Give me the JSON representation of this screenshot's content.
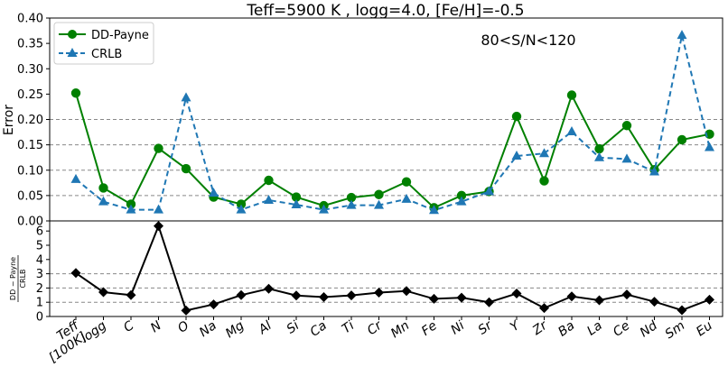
{
  "chart_data": [
    {
      "type": "line",
      "title": "Teff=5900 K , logg=4.0, [Fe/H]=-0.5",
      "annotation": "80<S/N<120",
      "ylabel": "Error",
      "xlabel": "",
      "ylim": [
        0.0,
        0.4
      ],
      "yticks": [
        "0.00",
        "0.05",
        "0.10",
        "0.15",
        "0.20",
        "0.25",
        "0.30",
        "0.35",
        "0.40"
      ],
      "grid": "dashed horizontal lines at 0.05, 0.10, 0.15, 0.20",
      "legend_position": "upper-left",
      "categories": [
        "Teff [100K]",
        "logg",
        "C",
        "N",
        "O",
        "Na",
        "Mg",
        "Al",
        "Si",
        "Ca",
        "Ti",
        "Cr",
        "Mn",
        "Fe",
        "Ni",
        "Sr",
        "Y",
        "Zr",
        "Ba",
        "La",
        "Ce",
        "Nd",
        "Sm",
        "Eu"
      ],
      "series": [
        {
          "name": "DD-Payne",
          "color": "#008000",
          "marker": "circle",
          "linestyle": "solid",
          "values": [
            0.252,
            0.065,
            0.033,
            0.143,
            0.103,
            0.047,
            0.033,
            0.08,
            0.047,
            0.03,
            0.046,
            0.052,
            0.077,
            0.026,
            0.05,
            0.058,
            0.206,
            0.079,
            0.248,
            0.142,
            0.188,
            0.101,
            0.16,
            0.171
          ]
        },
        {
          "name": "CRLB",
          "color": "#1f77b4",
          "marker": "triangle",
          "linestyle": "dashed",
          "values": [
            0.082,
            0.038,
            0.022,
            0.022,
            0.243,
            0.055,
            0.022,
            0.041,
            0.032,
            0.022,
            0.031,
            0.031,
            0.043,
            0.021,
            0.038,
            0.058,
            0.128,
            0.133,
            0.176,
            0.125,
            0.122,
            0.097,
            0.366,
            0.145
          ]
        }
      ]
    },
    {
      "type": "line",
      "ylabel_num": "DD − Payne",
      "ylabel_den": "CRLB",
      "ylim": [
        0,
        6.5
      ],
      "yticks": [
        "0",
        "1",
        "2",
        "3",
        "4",
        "5",
        "6"
      ],
      "grid": "dashed horizontal lines at 1, 2, 3",
      "categories": [
        "Teff [100K]",
        "logg",
        "C",
        "N",
        "O",
        "Na",
        "Mg",
        "Al",
        "Si",
        "Ca",
        "Ti",
        "Cr",
        "Mn",
        "Fe",
        "Ni",
        "Sr",
        "Y",
        "Zr",
        "Ba",
        "La",
        "Ce",
        "Nd",
        "Sm",
        "Eu"
      ],
      "tick_labels": [
        [
          "Teff",
          "[100K]"
        ],
        [
          "logg"
        ],
        [
          "C"
        ],
        [
          "N"
        ],
        [
          "O"
        ],
        [
          "Na"
        ],
        [
          "Mg"
        ],
        [
          "Al"
        ],
        [
          "Si"
        ],
        [
          "Ca"
        ],
        [
          "Ti"
        ],
        [
          "Cr"
        ],
        [
          "Mn"
        ],
        [
          "Fe"
        ],
        [
          "Ni"
        ],
        [
          "Sr"
        ],
        [
          "Y"
        ],
        [
          "Zr"
        ],
        [
          "Ba"
        ],
        [
          "La"
        ],
        [
          "Ce"
        ],
        [
          "Nd"
        ],
        [
          "Sm"
        ],
        [
          "Eu"
        ]
      ],
      "series": [
        {
          "color": "#000000",
          "marker": "diamond",
          "linestyle": "solid",
          "values": [
            3.05,
            1.71,
            1.5,
            6.35,
            0.42,
            0.85,
            1.5,
            1.95,
            1.47,
            1.36,
            1.48,
            1.68,
            1.79,
            1.24,
            1.32,
            1.0,
            1.61,
            0.59,
            1.41,
            1.14,
            1.54,
            1.04,
            0.44,
            1.18
          ]
        }
      ]
    }
  ]
}
